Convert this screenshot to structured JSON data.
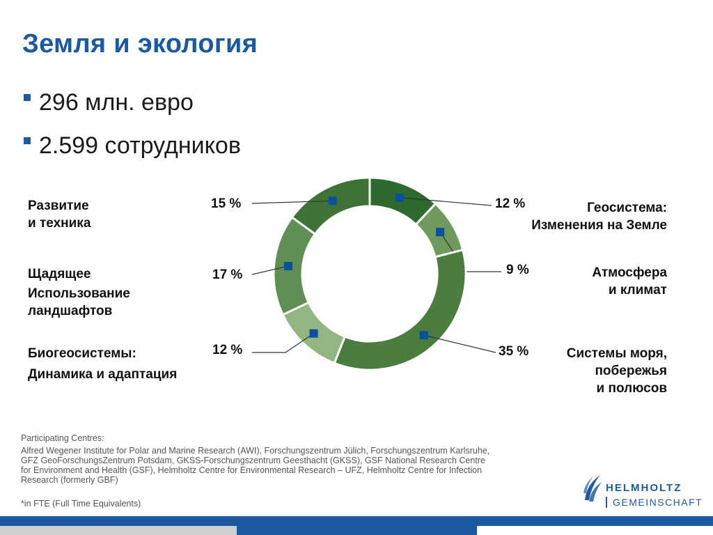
{
  "slide": {
    "title": "Земля и экология",
    "bullets": [
      "296 млн. евро",
      "2.599 сотрудников"
    ]
  },
  "chart_data": {
    "type": "pie",
    "style": "donut",
    "unit": "%",
    "start": "top-clockwise",
    "slices": [
      {
        "label_lines": [
          "Геосистема:",
          "Изменения на Земле"
        ],
        "value": 12,
        "value_label": "12 %",
        "color": "#2e6a2e"
      },
      {
        "label_lines": [
          "Атмосфера",
          "и климат"
        ],
        "value": 9,
        "value_label": "9 %",
        "color": "#6f9a5e"
      },
      {
        "label_lines": [
          "Системы моря,",
          "побережья",
          "и полюсов"
        ],
        "value": 35,
        "value_label": "35 %",
        "color": "#4a7d3e"
      },
      {
        "label_lines": [
          "Биогеосистемы:",
          "Динамика и адаптация"
        ],
        "value": 12,
        "value_label": "12 %",
        "color": "#93b582"
      },
      {
        "label_lines": [
          "Щадящее",
          "Использование",
          "ландшафтов"
        ],
        "value": 17,
        "value_label": "17 %",
        "color": "#5f8f53"
      },
      {
        "label_lines": [
          "Развитие",
          "и техника"
        ],
        "value": 15,
        "value_label": "15 %",
        "color": "#3f7336"
      }
    ],
    "marker_color": "#0a4fa0",
    "leader_color": "#333333"
  },
  "footer": {
    "heading": "Participating Centres:",
    "lines": [
      "Alfred Wegener Institute for Polar and Marine Research (AWI), Forschungszentrum Jülich, Forschungszentrum Karlsruhe,",
      "GFZ GeoForschungsZentrum Potsdam, GKSS-Forschungszentrum Geesthacht (GKSS), GSF National Research Centre",
      "for Environment and Health (GSF), Helmholtz Centre for Environmental Research – UFZ, Helmholtz Centre for Infection",
      "Research (formerly GBF)"
    ],
    "note": "*in FTE (Full Time Equivalents)"
  },
  "logo": {
    "word_1": "HELMHOLTZ",
    "word_2": "GEMEINSCHAFT",
    "color": "#1b5aa0",
    "icon": "helmholtz-logo-icon"
  }
}
